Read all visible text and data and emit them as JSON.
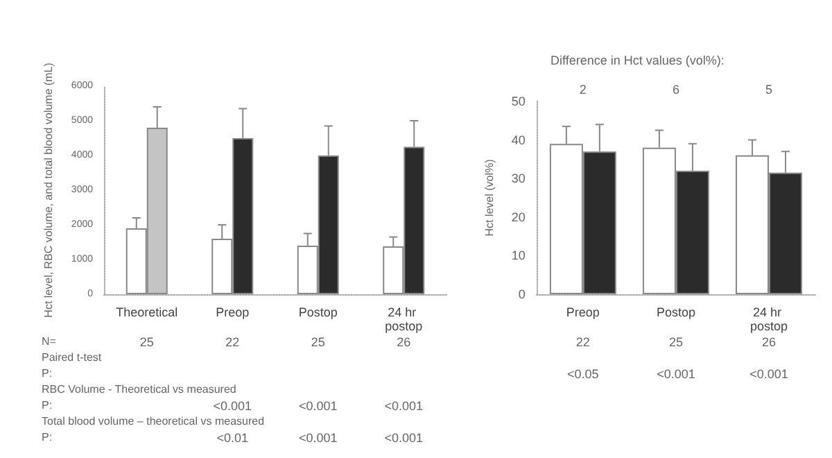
{
  "chart_data": [
    {
      "type": "bar",
      "ylabel": "Hct level, RBC volume, and total blood volume (mL)",
      "categories": [
        "Theoretical",
        "Preop",
        "Postop",
        "24 hr postop"
      ],
      "series": [
        {
          "colors": [
            "#ffffff",
            "#ffffff",
            "#ffffff",
            "#ffffff"
          ],
          "values": [
            1900,
            1600,
            1400,
            1380
          ],
          "errors": [
            [
              1900,
              2200
            ],
            [
              1600,
              2000
            ],
            [
              1400,
              1750
            ],
            [
              1380,
              1650
            ]
          ]
        },
        {
          "colors": [
            "#c4c4c4",
            "#2b2b2b",
            "#2b2b2b",
            "#2b2b2b"
          ],
          "values": [
            4800,
            4500,
            4000,
            4250
          ],
          "errors": [
            [
              4800,
              5400
            ],
            [
              4500,
              5350
            ],
            [
              4000,
              4850
            ],
            [
              4250,
              5000
            ]
          ]
        }
      ],
      "ylim": [
        0,
        6000
      ],
      "yticks": [
        0,
        1000,
        2000,
        3000,
        4000,
        5000,
        6000
      ],
      "grid": false,
      "annotations": [
        "N=",
        "25",
        "22",
        "25",
        "26",
        "Paired t-test",
        "P:",
        "RBC Volume - Theoretical vs measured",
        "P:",
        "<0.001",
        "<0.001",
        "<0.001",
        "Total blood volume – theoretical vs measured",
        "P:",
        "<0.01",
        "<0.001",
        "<0.001"
      ]
    },
    {
      "type": "bar",
      "title": "Difference in Hct values (vol%):",
      "ylabel": "Hct level (vol%)",
      "categories": [
        "Preop",
        "Postop",
        "24 hr postop"
      ],
      "series": [
        {
          "color": "#ffffff",
          "values": [
            39,
            38,
            36
          ],
          "errors": [
            [
              39,
              43.5
            ],
            [
              38,
              42.5
            ],
            [
              36,
              40
            ]
          ]
        },
        {
          "color": "#2b2b2b",
          "values": [
            37,
            32,
            31.5
          ],
          "errors": [
            [
              37,
              44
            ],
            [
              32,
              39
            ],
            [
              31.5,
              37
            ]
          ]
        }
      ],
      "ylim": [
        0,
        50
      ],
      "yticks": [
        0,
        10,
        20,
        30,
        40,
        50
      ],
      "grid": false,
      "annotations": [
        "2",
        "6",
        "5",
        "22",
        "25",
        "26",
        "<0.05",
        "<0.001",
        "<0.001"
      ]
    }
  ]
}
